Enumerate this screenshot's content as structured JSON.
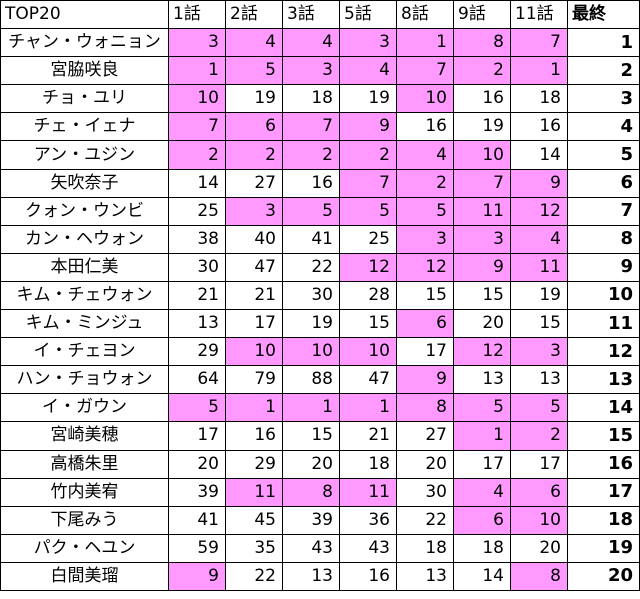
{
  "header": {
    "title": "TOP20",
    "columns": [
      "1話",
      "2話",
      "3話",
      "5話",
      "8話",
      "9話",
      "11話"
    ],
    "final": "最終"
  },
  "highlight_color": "#ff99ff",
  "rows": [
    {
      "name": "チャン・ウォニョン",
      "ranks": [
        3,
        4,
        4,
        3,
        1,
        8,
        7
      ],
      "final": 1
    },
    {
      "name": "宮脇咲良",
      "ranks": [
        1,
        5,
        3,
        4,
        7,
        2,
        1
      ],
      "final": 2
    },
    {
      "name": "チョ・ユリ",
      "ranks": [
        10,
        19,
        18,
        19,
        10,
        16,
        18
      ],
      "final": 3
    },
    {
      "name": "チェ・イェナ",
      "ranks": [
        7,
        6,
        7,
        9,
        16,
        19,
        16
      ],
      "final": 4
    },
    {
      "name": "アン・ユジン",
      "ranks": [
        2,
        2,
        2,
        2,
        4,
        10,
        14
      ],
      "final": 5
    },
    {
      "name": "矢吹奈子",
      "ranks": [
        14,
        27,
        16,
        7,
        2,
        7,
        9
      ],
      "final": 6
    },
    {
      "name": "クォン・ウンビ",
      "ranks": [
        25,
        3,
        5,
        5,
        5,
        11,
        12
      ],
      "final": 7
    },
    {
      "name": "カン・ヘウォン",
      "ranks": [
        38,
        40,
        41,
        25,
        3,
        3,
        4
      ],
      "final": 8
    },
    {
      "name": "本田仁美",
      "ranks": [
        30,
        47,
        22,
        12,
        12,
        9,
        11
      ],
      "final": 9
    },
    {
      "name": "キム・チェウォン",
      "ranks": [
        21,
        21,
        30,
        28,
        15,
        15,
        19
      ],
      "final": 10
    },
    {
      "name": "キム・ミンジュ",
      "ranks": [
        13,
        17,
        19,
        15,
        6,
        20,
        15
      ],
      "final": 11
    },
    {
      "name": "イ・チェヨン",
      "ranks": [
        29,
        10,
        10,
        10,
        17,
        12,
        3
      ],
      "final": 12
    },
    {
      "name": "ハン・チョウォン",
      "ranks": [
        64,
        79,
        88,
        47,
        9,
        13,
        13
      ],
      "final": 13
    },
    {
      "name": "イ・ガウン",
      "ranks": [
        5,
        1,
        1,
        1,
        8,
        5,
        5
      ],
      "final": 14
    },
    {
      "name": "宮崎美穂",
      "ranks": [
        17,
        16,
        15,
        21,
        27,
        1,
        2
      ],
      "final": 15
    },
    {
      "name": "高橋朱里",
      "ranks": [
        20,
        29,
        20,
        18,
        20,
        17,
        17
      ],
      "final": 16
    },
    {
      "name": "竹内美宥",
      "ranks": [
        39,
        11,
        8,
        11,
        30,
        4,
        6
      ],
      "final": 17
    },
    {
      "name": "下尾みう",
      "ranks": [
        41,
        45,
        39,
        36,
        22,
        6,
        10
      ],
      "final": 18
    },
    {
      "name": "パク・ヘユン",
      "ranks": [
        59,
        35,
        43,
        43,
        18,
        18,
        20
      ],
      "final": 19
    },
    {
      "name": "白間美瑠",
      "ranks": [
        9,
        22,
        13,
        16,
        13,
        14,
        8
      ],
      "final": 20
    }
  ]
}
